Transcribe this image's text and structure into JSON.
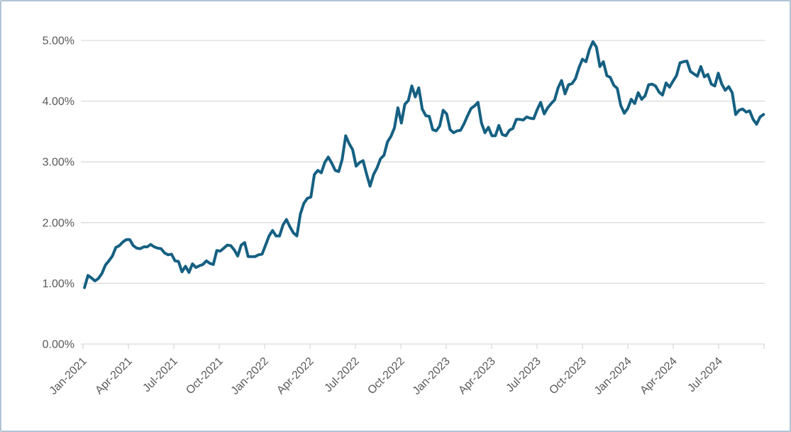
{
  "panel": {
    "background": "#ffffff",
    "border_color": "#b0c4d6"
  },
  "chart_data": {
    "type": "line",
    "title": "",
    "xlabel": "",
    "ylabel": "",
    "legend": "none",
    "grid": true,
    "grid_color": "#d9d9d9",
    "axis_color": "#d9d9d9",
    "tick_label_color": "#595959",
    "y_axis": {
      "min": 0,
      "max": 5,
      "step": 1,
      "format": "percent",
      "tick_labels": [
        "0.00%",
        "1.00%",
        "2.00%",
        "3.00%",
        "4.00%",
        "5.00%"
      ]
    },
    "x_axis": {
      "start": "Jan-2021",
      "end": "Oct-2024",
      "tick_interval_months": 3,
      "label_rotation_deg": -45,
      "tick_labels": [
        "Jan-2021",
        "Apr-2021",
        "Jul-2021",
        "Oct-2021",
        "Jan-2022",
        "Apr-2022",
        "Jul-2022",
        "Oct-2022",
        "Jan-2023",
        "Apr-2023",
        "Jul-2023",
        "Oct-2023",
        "Jan-2024",
        "Apr-2024",
        "Jul-2024"
      ],
      "unlabeled_end_tick": true
    },
    "series": [
      {
        "name": "series-1",
        "color": "#156082",
        "stroke_width": 4,
        "unit": "percent",
        "start_date": "2021-01-04",
        "interval_days": 7,
        "values": [
          0.93,
          1.13,
          1.09,
          1.04,
          1.08,
          1.16,
          1.3,
          1.37,
          1.45,
          1.59,
          1.62,
          1.68,
          1.72,
          1.72,
          1.62,
          1.58,
          1.57,
          1.6,
          1.6,
          1.64,
          1.6,
          1.58,
          1.57,
          1.5,
          1.47,
          1.48,
          1.37,
          1.36,
          1.19,
          1.28,
          1.18,
          1.32,
          1.26,
          1.29,
          1.31,
          1.37,
          1.33,
          1.31,
          1.54,
          1.53,
          1.58,
          1.63,
          1.62,
          1.55,
          1.45,
          1.63,
          1.67,
          1.44,
          1.44,
          1.44,
          1.47,
          1.48,
          1.63,
          1.78,
          1.87,
          1.78,
          1.78,
          1.96,
          2.05,
          1.93,
          1.83,
          1.78,
          2.14,
          2.32,
          2.4,
          2.42,
          2.79,
          2.86,
          2.82,
          2.99,
          3.08,
          2.98,
          2.86,
          2.84,
          3.04,
          3.43,
          3.3,
          3.2,
          2.93,
          2.99,
          3.02,
          2.8,
          2.6,
          2.79,
          2.9,
          3.05,
          3.11,
          3.33,
          3.42,
          3.56,
          3.89,
          3.64,
          3.95,
          4.01,
          4.25,
          4.07,
          4.22,
          3.87,
          3.76,
          3.75,
          3.53,
          3.51,
          3.59,
          3.85,
          3.79,
          3.53,
          3.48,
          3.51,
          3.52,
          3.63,
          3.76,
          3.88,
          3.92,
          3.98,
          3.64,
          3.48,
          3.57,
          3.43,
          3.43,
          3.6,
          3.45,
          3.43,
          3.52,
          3.55,
          3.7,
          3.7,
          3.69,
          3.74,
          3.72,
          3.71,
          3.86,
          3.98,
          3.79,
          3.89,
          3.96,
          4.02,
          4.22,
          4.34,
          4.12,
          4.27,
          4.29,
          4.37,
          4.55,
          4.69,
          4.65,
          4.85,
          4.98,
          4.89,
          4.57,
          4.65,
          4.42,
          4.39,
          4.26,
          4.21,
          3.93,
          3.8,
          3.88,
          4.03,
          3.96,
          4.14,
          4.03,
          4.09,
          4.27,
          4.28,
          4.25,
          4.15,
          4.1,
          4.3,
          4.23,
          4.33,
          4.42,
          4.63,
          4.65,
          4.66,
          4.49,
          4.45,
          4.41,
          4.57,
          4.4,
          4.44,
          4.28,
          4.25,
          4.46,
          4.28,
          4.18,
          4.24,
          4.14,
          3.78,
          3.85,
          3.87,
          3.82,
          3.84,
          3.7,
          3.62,
          3.74,
          3.78
        ]
      }
    ]
  }
}
